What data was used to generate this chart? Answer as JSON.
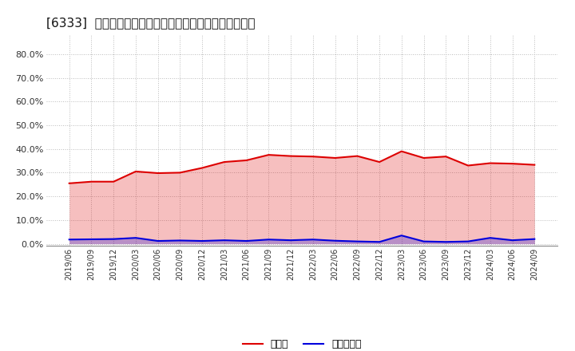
{
  "title": "[6333]  現預金、有利子負債の総資産に対する比率の推移",
  "x_labels": [
    "2019/06",
    "2019/09",
    "2019/12",
    "2020/03",
    "2020/06",
    "2020/09",
    "2020/12",
    "2021/03",
    "2021/06",
    "2021/09",
    "2021/12",
    "2022/03",
    "2022/06",
    "2022/09",
    "2022/12",
    "2023/03",
    "2023/06",
    "2023/09",
    "2023/12",
    "2024/03",
    "2024/06",
    "2024/09"
  ],
  "cash_ratio": [
    0.255,
    0.262,
    0.262,
    0.305,
    0.298,
    0.3,
    0.32,
    0.345,
    0.352,
    0.375,
    0.37,
    0.368,
    0.362,
    0.37,
    0.345,
    0.39,
    0.362,
    0.368,
    0.33,
    0.34,
    0.338,
    0.333
  ],
  "debt_ratio": [
    0.018,
    0.019,
    0.02,
    0.025,
    0.012,
    0.014,
    0.012,
    0.015,
    0.012,
    0.018,
    0.015,
    0.018,
    0.013,
    0.01,
    0.008,
    0.035,
    0.01,
    0.008,
    0.01,
    0.025,
    0.015,
    0.02
  ],
  "cash_color": "#dd0000",
  "debt_color": "#0000dd",
  "bg_color": "#ffffff",
  "grid_color": "#bbbbbb",
  "yticks": [
    0.0,
    0.1,
    0.2,
    0.3,
    0.4,
    0.5,
    0.6,
    0.7,
    0.8
  ],
  "ylim": [
    -0.008,
    0.88
  ],
  "legend_cash": "現預金",
  "legend_debt": "有利子負債",
  "title_fontsize": 11,
  "label_fontsize": 8,
  "legend_fontsize": 9
}
